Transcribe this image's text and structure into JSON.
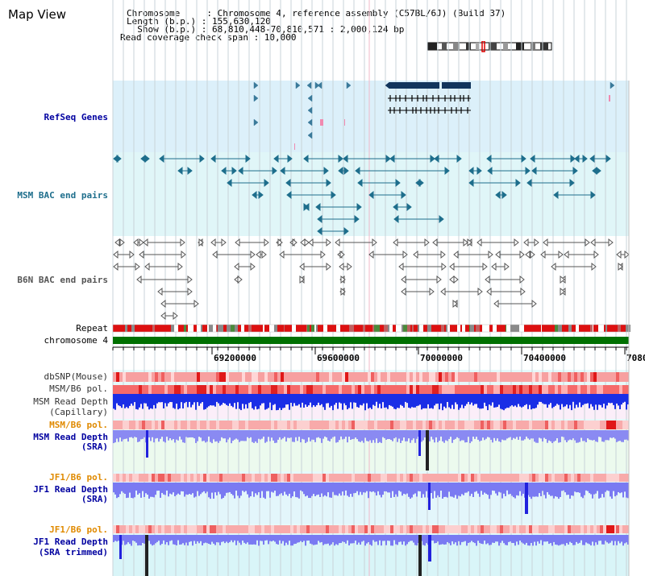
{
  "app": {
    "title": "Map View"
  },
  "header": {
    "line1": "Chromosome     : Chromosome 4, reference assembly (C57BL/6J) (Build 37)",
    "line2": "Length (b.p.) : 155,630,120",
    "line3": "  Show (b.p.) : 68,810,448-70,810,571 : 2,000,124 bp",
    "line4": "Read coverage check span : 10,000"
  },
  "tracks": {
    "refseq": "RefSeq Genes",
    "msm_bac": "MSM BAC end pairs",
    "b6n_bac": "B6N BAC end pairs",
    "repeat": "Repeat",
    "chromosome": "chromosome 4",
    "dbsnp": "dbSNP(Mouse)",
    "msm_b6_pol_1": "MSM/B6 pol.",
    "msm_read_depth_cap_1": "MSM Read Depth",
    "msm_read_depth_cap_2": "(Capillary)",
    "msm_b6_pol_2": "MSM/B6 pol.",
    "msm_read_depth_sra_1": "MSM Read Depth",
    "msm_read_depth_sra_2": "(SRA)",
    "jf1_b6_pol_1": "JF1/B6 pol.",
    "jf1_read_depth_sra_1": "JF1 Read Depth",
    "jf1_read_depth_sra_2": "(SRA)",
    "jf1_b6_pol_2": "JF1/B6 pol.",
    "jf1_read_depth_trim_1": "JF1 Read Depth",
    "jf1_read_depth_trim_2": "(SRA trimmed)"
  },
  "axis": {
    "ticks": [
      "69200000",
      "69600000",
      "70000000",
      "70400000",
      "7080"
    ]
  },
  "colors": {
    "refseq_bg": "#dcf0fa",
    "msm_bac_bg": "#e0f6f8",
    "gene_dark": "#12355c",
    "msm_bac": "#1e6e8c",
    "b6n_bac": "#555555",
    "chrom": "#007000",
    "orange_label": "#e08a00",
    "blue_label": "#0000a0",
    "teal_label": "#1e6e8c"
  }
}
